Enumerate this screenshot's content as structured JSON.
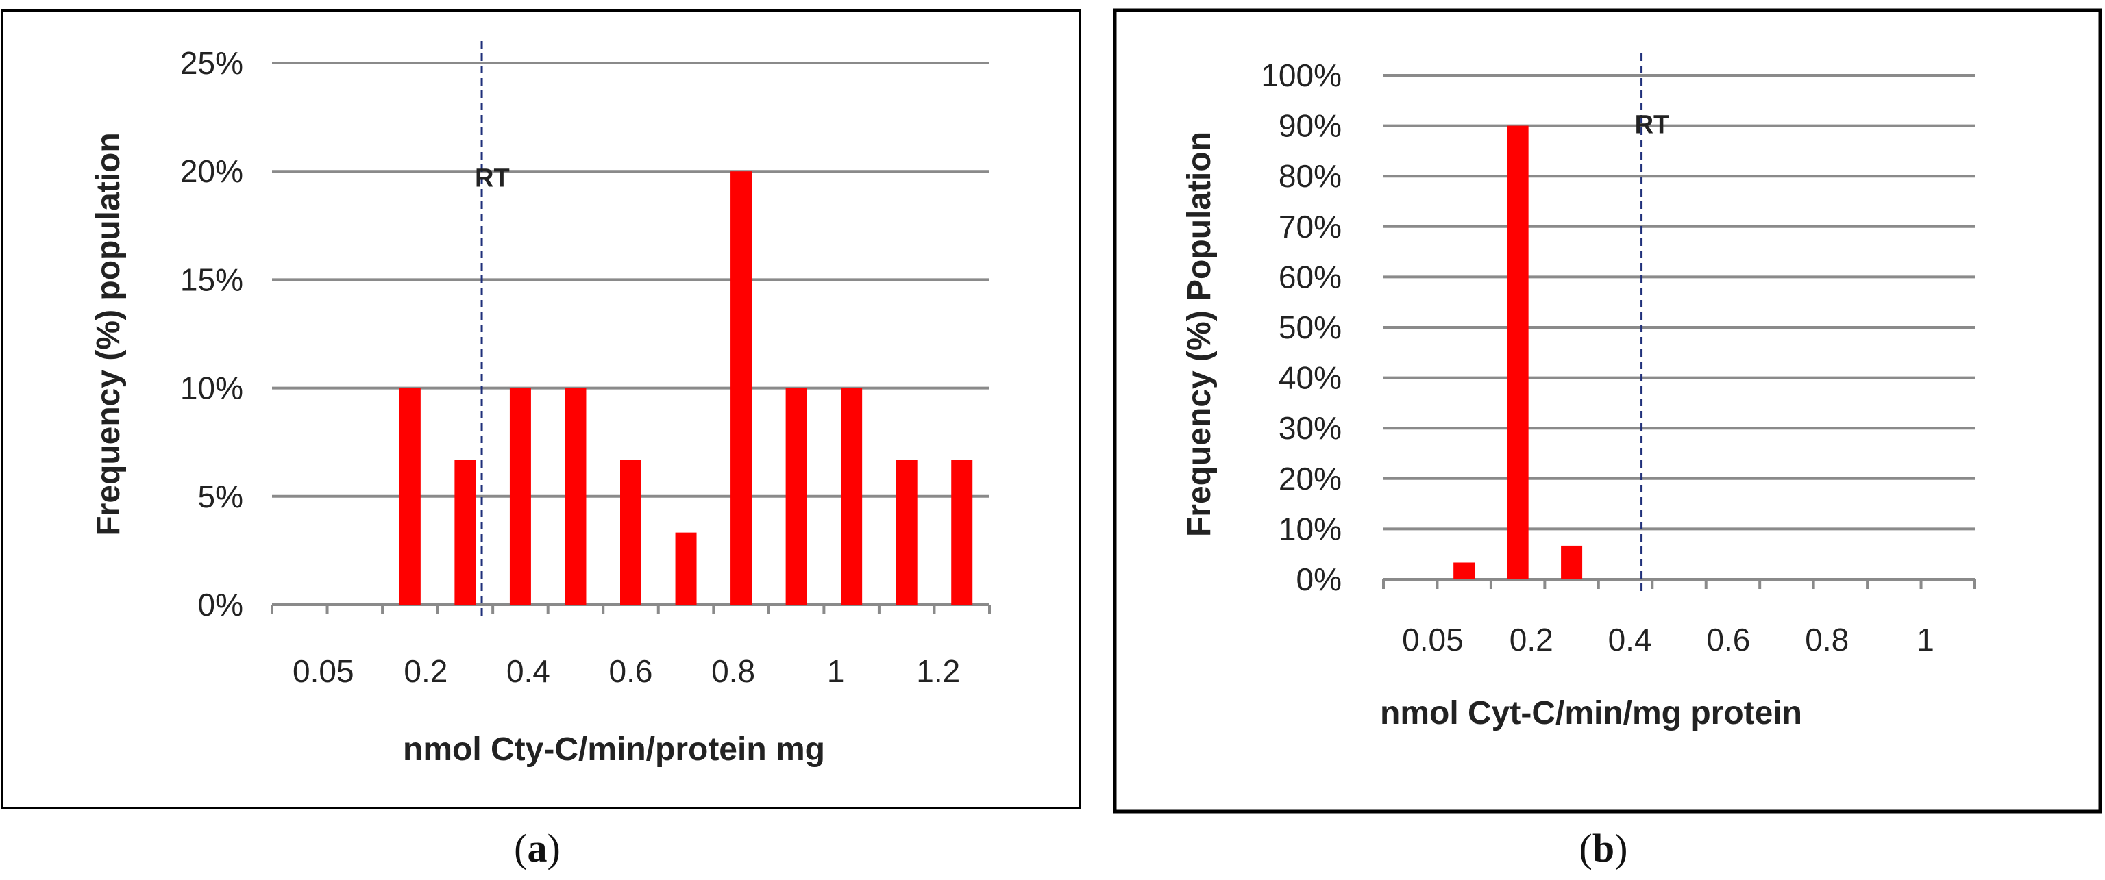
{
  "chart_data": [
    {
      "type": "bar",
      "panel_label": "a",
      "title": "",
      "xlabel": "nmol Cty-C/min/protein mg",
      "ylabel": "Frequency (%) population",
      "ylim": [
        0,
        25
      ],
      "y_ticks": [
        "0%",
        "5%",
        "10%",
        "15%",
        "20%",
        "25%"
      ],
      "x_tick_labels": [
        "0.05",
        "0.2",
        "0.4",
        "0.6",
        "0.8",
        "1",
        "1.2"
      ],
      "categories": [
        "0.05",
        "0.1",
        "0.2",
        "0.3",
        "0.4",
        "0.5",
        "0.6",
        "0.7",
        "0.8",
        "0.9",
        "1",
        "1.1",
        "1.2"
      ],
      "values": [
        0,
        0,
        10,
        6.67,
        10,
        10,
        6.67,
        3.33,
        20,
        10,
        10,
        6.67,
        6.67
      ],
      "bar_color": "#ff0000",
      "grid": true,
      "reference_line": {
        "label": "RT",
        "x": 0.33,
        "color": "#1f2f7a"
      }
    },
    {
      "type": "bar",
      "panel_label": "b",
      "title": "",
      "xlabel": "nmol Cyt-C/min/mg protein",
      "ylabel": "Frequency (%) Population",
      "ylim": [
        0,
        100
      ],
      "y_ticks": [
        "0%",
        "10%",
        "20%",
        "30%",
        "40%",
        "50%",
        "60%",
        "70%",
        "80%",
        "90%",
        "100%"
      ],
      "x_tick_labels": [
        "0.05",
        "0.2",
        "0.4",
        "0.6",
        "0.8",
        "1"
      ],
      "categories": [
        "0.05",
        "0.1",
        "0.2",
        "0.3",
        "0.4",
        "0.5",
        "0.6",
        "0.7",
        "0.8",
        "0.9",
        "1"
      ],
      "values": [
        0,
        3.33,
        90,
        6.67,
        0,
        0,
        0,
        0,
        0,
        0,
        0
      ],
      "bar_color": "#ff0000",
      "grid": true,
      "reference_line": {
        "label": "RT",
        "x": 0.43,
        "color": "#1f2f7a"
      }
    }
  ]
}
